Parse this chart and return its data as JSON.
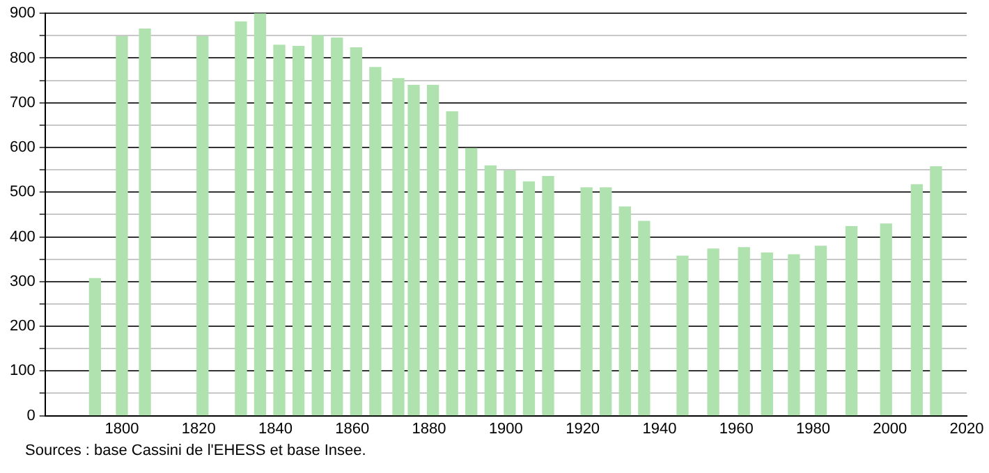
{
  "chart_data": {
    "type": "bar",
    "color": "#b0e2b0",
    "x": [
      1793,
      1800,
      1806,
      1821,
      1831,
      1836,
      1841,
      1846,
      1851,
      1856,
      1861,
      1866,
      1872,
      1876,
      1881,
      1886,
      1891,
      1896,
      1901,
      1906,
      1911,
      1921,
      1926,
      1931,
      1936,
      1946,
      1954,
      1962,
      1968,
      1975,
      1982,
      1990,
      1999,
      2007,
      2012
    ],
    "values": [
      307,
      848,
      865,
      848,
      881,
      900,
      829,
      826,
      850,
      845,
      823,
      779,
      754,
      739,
      739,
      680,
      598,
      559,
      548,
      523,
      535,
      510,
      510,
      467,
      435,
      357,
      373,
      376,
      364,
      360,
      379,
      423,
      429,
      517,
      557
    ],
    "xlim": [
      1780,
      2020
    ],
    "xticks": [
      1800,
      1820,
      1840,
      1860,
      1880,
      1900,
      1920,
      1940,
      1960,
      1980,
      2000,
      2020
    ],
    "ylim": [
      0,
      900
    ],
    "yticks": [
      0,
      {
        "value": 50,
        "label": null
      },
      100,
      {
        "value": 150,
        "label": null
      },
      200,
      {
        "value": 250,
        "label": null
      },
      300,
      {
        "value": 350,
        "label": null
      },
      400,
      {
        "value": 450,
        "label": null
      },
      500,
      {
        "value": 550,
        "label": null
      },
      600,
      {
        "value": 650,
        "label": null
      },
      700,
      {
        "value": 750,
        "label": null
      },
      800,
      {
        "value": 850,
        "label": null
      },
      900
    ],
    "grid": true,
    "annotations": [
      "Sources : base Cassini de l'EHESS et base Insee."
    ]
  }
}
